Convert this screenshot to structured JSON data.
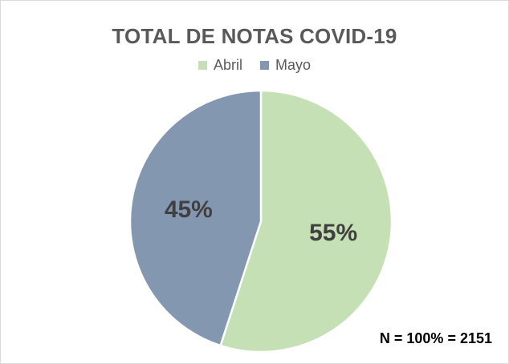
{
  "chart_data": {
    "type": "pie",
    "title": "TOTAL DE NOTAS COVID-19",
    "categories": [
      "Abril",
      "Mayo"
    ],
    "values": [
      55,
      45
    ],
    "data_labels": [
      "55%",
      "45%"
    ],
    "colors": [
      "#c5e0b4",
      "#8497b0"
    ],
    "legend_position": "top",
    "annotation": "N = 100% = 2151"
  }
}
